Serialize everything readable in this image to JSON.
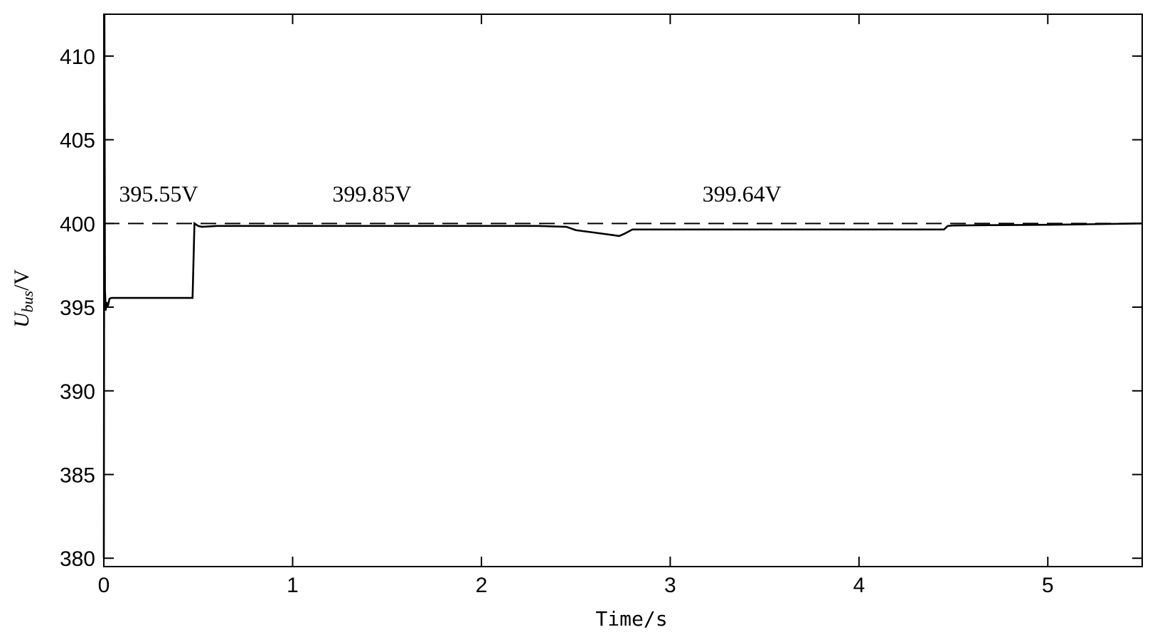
{
  "chart_data": {
    "type": "line",
    "title": "",
    "xlabel": "Time/s",
    "ylabel_main": "U",
    "ylabel_sub": "bus",
    "ylabel_suffix": "/V",
    "xlim": [
      0,
      5.5
    ],
    "ylim": [
      379.5,
      412.5
    ],
    "xticks": [
      0,
      1,
      2,
      3,
      4,
      5
    ],
    "yticks": [
      380,
      385,
      390,
      395,
      400,
      405,
      410
    ],
    "grid": false,
    "series": [
      {
        "style": "solid",
        "x": [
          0,
          0.003,
          0.006,
          0.01,
          0.015,
          0.02,
          0.03,
          0.04,
          0.05,
          0.1,
          0.2,
          0.3,
          0.4,
          0.47,
          0.48,
          0.5,
          0.52,
          0.6,
          1.0,
          1.5,
          2.0,
          2.3,
          2.45,
          2.5,
          2.6,
          2.7,
          2.73,
          2.76,
          2.8,
          2.9,
          3.0,
          3.5,
          4.0,
          4.45,
          4.47,
          4.5,
          4.7,
          5.0,
          5.2,
          5.5
        ],
        "y": [
          380,
          412.5,
          396.0,
          394.8,
          395.3,
          395.0,
          395.5,
          395.55,
          395.55,
          395.55,
          395.55,
          395.55,
          395.55,
          395.55,
          400.0,
          399.85,
          399.8,
          399.85,
          399.85,
          399.85,
          399.85,
          399.85,
          399.8,
          399.6,
          399.45,
          399.3,
          399.25,
          399.4,
          399.64,
          399.64,
          399.64,
          399.64,
          399.64,
          399.64,
          399.85,
          399.88,
          399.9,
          399.92,
          399.95,
          400.0
        ]
      },
      {
        "style": "dashed",
        "x": [
          0,
          5.5
        ],
        "y": [
          400,
          400
        ]
      }
    ],
    "annotations": [
      {
        "text": "395.55V",
        "x": 0.29,
        "y": 401.3
      },
      {
        "text": "399.85V",
        "x": 1.42,
        "y": 401.3
      },
      {
        "text": "399.64V",
        "x": 3.38,
        "y": 401.3
      }
    ]
  }
}
